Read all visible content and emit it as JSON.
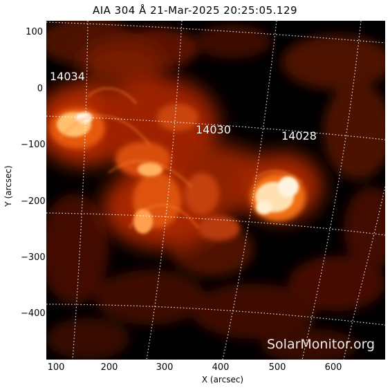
{
  "title": "AIA 304 Å 21-Mar-2025  20:25:05.129",
  "axes": {
    "x_label": "X (arcsec)",
    "y_label": "Y (arcsec)",
    "x_ticks": [
      "100",
      "200",
      "300",
      "400",
      "500",
      "600"
    ],
    "y_ticks": [
      "100",
      "0",
      "−100",
      "−200",
      "−300",
      "−400"
    ]
  },
  "active_regions": [
    "14034",
    "14030",
    "14028"
  ],
  "watermark": "SolarMonitor.org",
  "colors": {
    "background": "#000000",
    "emission_bright": "#fff4e0",
    "emission_mid": "#ff7a1a",
    "emission_dim": "#b52a00",
    "grid": "#ffffff"
  }
}
